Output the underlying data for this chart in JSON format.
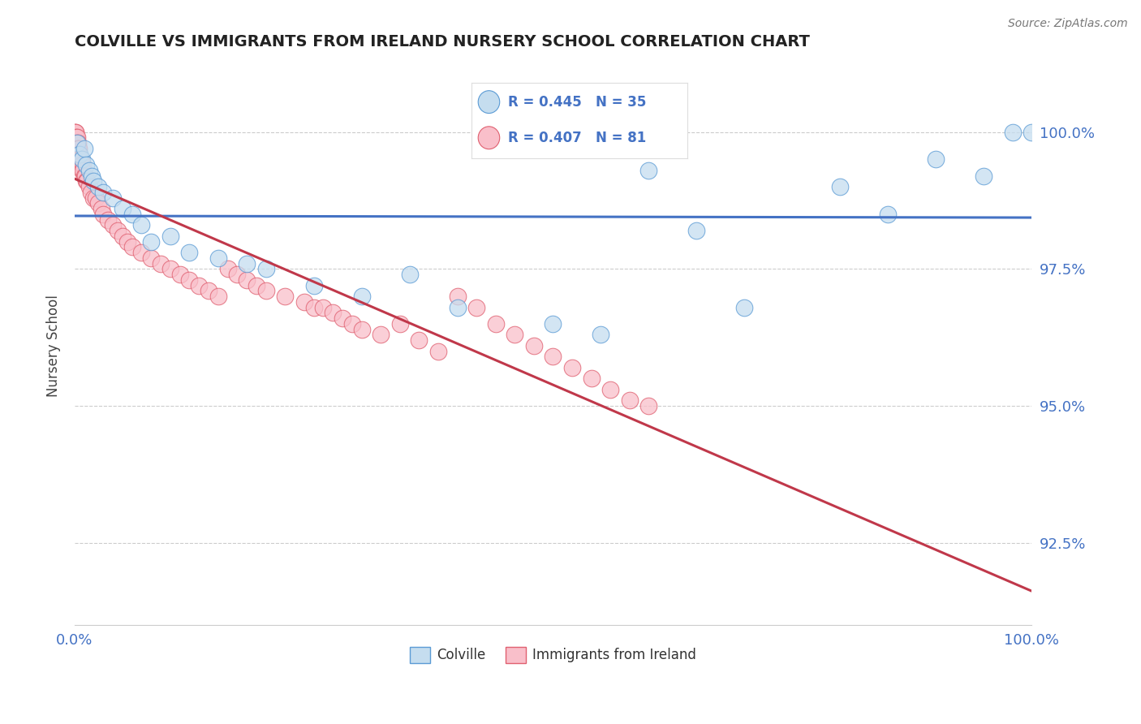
{
  "title": "COLVILLE VS IMMIGRANTS FROM IRELAND NURSERY SCHOOL CORRELATION CHART",
  "source_text": "Source: ZipAtlas.com",
  "ylabel": "Nursery School",
  "xmin": 0.0,
  "xmax": 100.0,
  "ymin": 91.0,
  "ymax": 101.2,
  "yticks": [
    92.5,
    95.0,
    97.5,
    100.0
  ],
  "ytick_labels": [
    "92.5%",
    "95.0%",
    "97.5%",
    "100.0%"
  ],
  "colville_R": 0.445,
  "colville_N": 35,
  "ireland_R": 0.407,
  "ireland_N": 81,
  "colville_color": "#c5ddef",
  "ireland_color": "#f9bfca",
  "colville_edge_color": "#5b9bd5",
  "ireland_edge_color": "#e06070",
  "colville_line_color": "#4472c4",
  "ireland_line_color": "#c0384a",
  "background_color": "#ffffff",
  "grid_color": "#cccccc",
  "title_color": "#222222",
  "axis_label_color": "#444444",
  "tick_label_color": "#4472c4",
  "colville_x": [
    0.3,
    0.5,
    0.8,
    1.0,
    1.2,
    1.5,
    1.8,
    2.0,
    2.5,
    3.0,
    4.0,
    5.0,
    6.0,
    7.0,
    8.0,
    10.0,
    12.0,
    15.0,
    18.0,
    20.0,
    25.0,
    30.0,
    35.0,
    40.0,
    50.0,
    55.0,
    60.0,
    65.0,
    70.0,
    80.0,
    85.0,
    90.0,
    95.0,
    98.0,
    100.0
  ],
  "colville_y": [
    99.8,
    99.6,
    99.5,
    99.7,
    99.4,
    99.3,
    99.2,
    99.1,
    99.0,
    98.9,
    98.8,
    98.6,
    98.5,
    98.3,
    98.0,
    98.1,
    97.8,
    97.7,
    97.6,
    97.5,
    97.2,
    97.0,
    97.4,
    96.8,
    96.5,
    96.3,
    99.3,
    98.2,
    96.8,
    99.0,
    98.5,
    99.5,
    99.2,
    100.0,
    100.0
  ],
  "ireland_x": [
    0.05,
    0.08,
    0.1,
    0.12,
    0.15,
    0.18,
    0.2,
    0.22,
    0.25,
    0.28,
    0.3,
    0.32,
    0.35,
    0.38,
    0.4,
    0.42,
    0.45,
    0.48,
    0.5,
    0.55,
    0.6,
    0.65,
    0.7,
    0.75,
    0.8,
    0.85,
    0.9,
    1.0,
    1.1,
    1.2,
    1.3,
    1.5,
    1.7,
    2.0,
    2.2,
    2.5,
    2.8,
    3.0,
    3.5,
    4.0,
    4.5,
    5.0,
    5.5,
    6.0,
    7.0,
    8.0,
    9.0,
    10.0,
    11.0,
    12.0,
    13.0,
    14.0,
    15.0,
    16.0,
    17.0,
    18.0,
    19.0,
    20.0,
    22.0,
    24.0,
    25.0,
    26.0,
    27.0,
    28.0,
    29.0,
    30.0,
    32.0,
    34.0,
    36.0,
    38.0,
    40.0,
    42.0,
    44.0,
    46.0,
    48.0,
    50.0,
    52.0,
    54.0,
    56.0,
    58.0,
    60.0
  ],
  "ireland_y": [
    100.0,
    100.0,
    99.9,
    100.0,
    99.9,
    99.8,
    99.8,
    99.8,
    99.9,
    99.7,
    99.7,
    99.8,
    99.7,
    99.6,
    99.6,
    99.7,
    99.6,
    99.5,
    99.5,
    99.5,
    99.4,
    99.5,
    99.4,
    99.4,
    99.3,
    99.4,
    99.3,
    99.2,
    99.2,
    99.1,
    99.1,
    99.0,
    98.9,
    98.8,
    98.8,
    98.7,
    98.6,
    98.5,
    98.4,
    98.3,
    98.2,
    98.1,
    98.0,
    97.9,
    97.8,
    97.7,
    97.6,
    97.5,
    97.4,
    97.3,
    97.2,
    97.1,
    97.0,
    97.5,
    97.4,
    97.3,
    97.2,
    97.1,
    97.0,
    96.9,
    96.8,
    96.8,
    96.7,
    96.6,
    96.5,
    96.4,
    96.3,
    96.5,
    96.2,
    96.0,
    97.0,
    96.8,
    96.5,
    96.3,
    96.1,
    95.9,
    95.7,
    95.5,
    95.3,
    95.1,
    95.0
  ]
}
